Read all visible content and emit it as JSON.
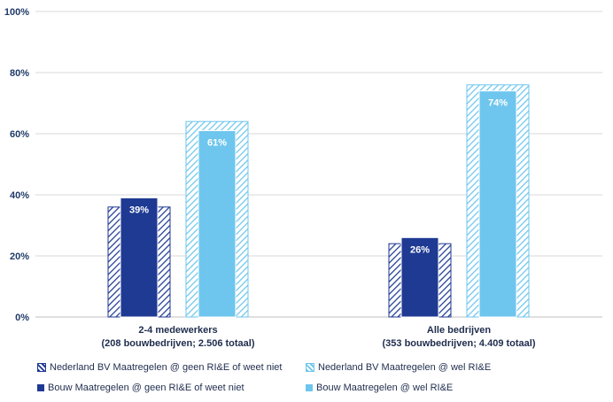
{
  "chart_data": {
    "type": "bar",
    "ylim": [
      0,
      100
    ],
    "y_ticks": [
      "0%",
      "20%",
      "40%",
      "60%",
      "80%",
      "100%"
    ],
    "grid": true,
    "legend_position": "bottom",
    "categories": [
      [
        "2-4 medewerkers",
        "(208 bouwbedrijven; 2.506 totaal)"
      ],
      [
        "Alle bedrijven",
        "(353 bouwbedrijven; 4.409 totaal)"
      ]
    ],
    "series": [
      {
        "name": "Nederland BV Maatregelen @ geen RI&E of weet niet",
        "values": [
          36,
          24
        ],
        "style": "hatched-outline",
        "color": "#1f3a93"
      },
      {
        "name": "Nederland BV Maatregelen @ wel RI&E",
        "values": [
          64,
          76
        ],
        "style": "hatched-outline",
        "color": "#6ec6ee"
      },
      {
        "name": "Bouw Maatregelen @ geen RI&E of weet niet",
        "values": [
          39,
          26
        ],
        "style": "solid",
        "color": "#1f3a93"
      },
      {
        "name": "Bouw Maatregelen @ wel RI&E",
        "values": [
          61,
          74
        ],
        "style": "solid",
        "color": "#6ec6ee"
      }
    ],
    "data_labels": {
      "Bouw Maatregelen @ geen RI&E of weet niet": [
        "39%",
        "26%"
      ],
      "Bouw Maatregelen @ wel RI&E": [
        "61%",
        "74%"
      ]
    }
  }
}
